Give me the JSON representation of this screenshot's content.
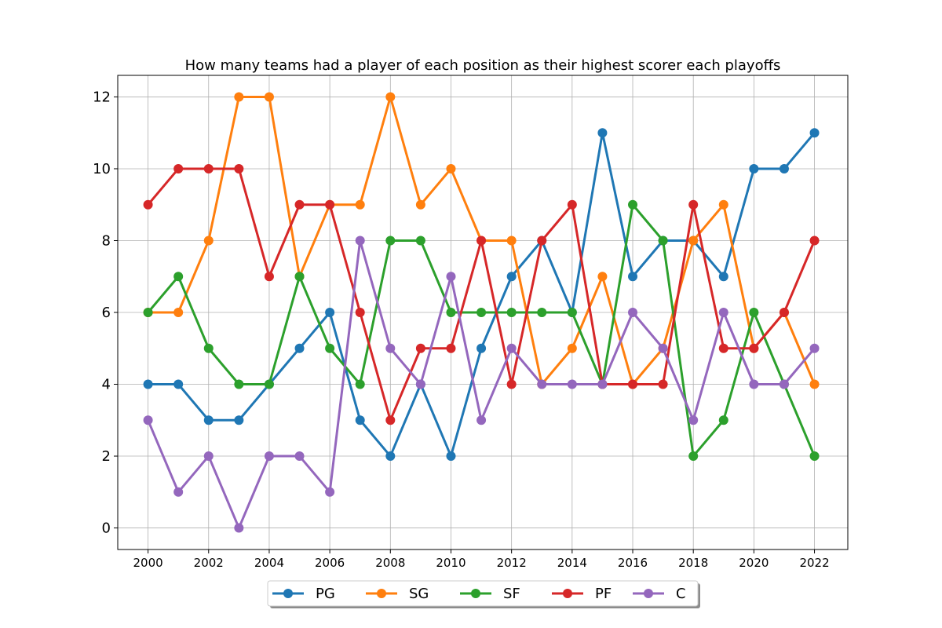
{
  "chart_data": {
    "type": "line",
    "title": "How many teams had a player of each position as their highest scorer each playoffs",
    "xlabel": "",
    "ylabel": "",
    "x": [
      2000,
      2001,
      2002,
      2003,
      2004,
      2005,
      2006,
      2007,
      2008,
      2009,
      2010,
      2011,
      2012,
      2013,
      2014,
      2015,
      2016,
      2017,
      2018,
      2019,
      2020,
      2021,
      2022
    ],
    "xlim": [
      1999,
      2023.1
    ],
    "ylim": [
      -0.6,
      12.6
    ],
    "xticks": [
      "2000",
      "2002",
      "2004",
      "2006",
      "2008",
      "2010",
      "2012",
      "2014",
      "2016",
      "2018",
      "2020",
      "2022"
    ],
    "yticks": [
      "0",
      "2",
      "4",
      "6",
      "8",
      "10",
      "12"
    ],
    "grid": true,
    "legend_position": "bottom-center",
    "series": [
      {
        "name": "PG",
        "color": "#1f77b4",
        "values": [
          4,
          4,
          3,
          3,
          4,
          5,
          6,
          3,
          2,
          4,
          2,
          5,
          7,
          8,
          6,
          11,
          7,
          8,
          8,
          7,
          10,
          10,
          11
        ]
      },
      {
        "name": "SG",
        "color": "#ff7f0e",
        "values": [
          6,
          6,
          8,
          12,
          12,
          7,
          9,
          9,
          12,
          9,
          10,
          8,
          8,
          4,
          5,
          7,
          4,
          5,
          8,
          9,
          5,
          6,
          4
        ]
      },
      {
        "name": "SF",
        "color": "#2ca02c",
        "values": [
          6,
          7,
          5,
          4,
          4,
          7,
          5,
          4,
          8,
          8,
          6,
          6,
          6,
          6,
          6,
          4,
          9,
          8,
          2,
          3,
          6,
          4,
          2
        ]
      },
      {
        "name": "PF",
        "color": "#d62728",
        "values": [
          9,
          10,
          10,
          10,
          7,
          9,
          9,
          6,
          3,
          5,
          5,
          8,
          4,
          8,
          9,
          4,
          4,
          4,
          9,
          5,
          5,
          6,
          8
        ]
      },
      {
        "name": "C",
        "color": "#9467bd",
        "values": [
          3,
          1,
          2,
          0,
          2,
          2,
          1,
          8,
          5,
          4,
          7,
          3,
          5,
          4,
          4,
          4,
          6,
          5,
          3,
          6,
          4,
          4,
          5
        ]
      }
    ]
  }
}
